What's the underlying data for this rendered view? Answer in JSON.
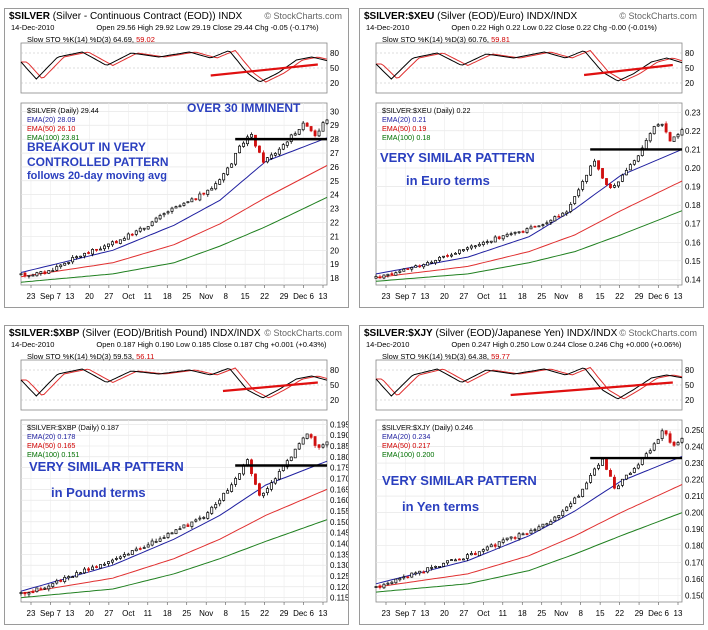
{
  "chart_data": [
    {
      "type": "candlestick",
      "symbol": "$SILVER",
      "title": "(Silver - Continuous Contract (EOD))",
      "exchange": "INDX",
      "brand": "© StockCharts.com",
      "date": "14-Dec-2010",
      "ohlc_text": "Open 29.56  High 29.92  Low 29.19  Close 29.44  Chg -0.05 (-0.17%)",
      "sto_label": "Slow STO %K(14) %D(3) 64.69,",
      "sto_value2": "59.02",
      "sto_axis": [
        "80",
        "50",
        "20"
      ],
      "price_label": "$SILVER (Daily) 29.44",
      "ema_labels": [
        "EMA(20) 28.09",
        "EMA(50) 26.10",
        "EMA(100) 23.81"
      ],
      "yticks": [
        "30",
        "29",
        "28",
        "27",
        "26",
        "25",
        "24",
        "23",
        "22",
        "21",
        "20",
        "19",
        "18"
      ],
      "ymin": 17.5,
      "ymax": 30.6,
      "xticks": [
        "23",
        "Sep 7",
        "13",
        "20",
        "27",
        "Oct",
        "11",
        "18",
        "25",
        "Nov",
        "8",
        "15",
        "22",
        "29",
        "Dec 6",
        "13"
      ],
      "start": 18.2,
      "end": 29.44,
      "resistance": 28.0,
      "price_path": [
        [
          0,
          18.2
        ],
        [
          0.08,
          18.4
        ],
        [
          0.18,
          19.5
        ],
        [
          0.3,
          20.5
        ],
        [
          0.4,
          21.6
        ],
        [
          0.48,
          22.8
        ],
        [
          0.56,
          23.6
        ],
        [
          0.62,
          24.4
        ],
        [
          0.68,
          26.0
        ],
        [
          0.72,
          27.6
        ],
        [
          0.75,
          28.4
        ],
        [
          0.79,
          26.4
        ],
        [
          0.83,
          27.0
        ],
        [
          0.87,
          27.9
        ],
        [
          0.9,
          28.6
        ],
        [
          0.93,
          29.2
        ],
        [
          0.96,
          28.3
        ],
        [
          1.0,
          29.44
        ]
      ],
      "emas": [
        [
          [
            0,
            18.4
          ],
          [
            0.3,
            20.0
          ],
          [
            0.5,
            21.8
          ],
          [
            0.65,
            23.6
          ],
          [
            0.8,
            26.4
          ],
          [
            1.0,
            28.09
          ]
        ],
        [
          [
            0,
            18.1
          ],
          [
            0.3,
            19.1
          ],
          [
            0.5,
            20.4
          ],
          [
            0.65,
            21.9
          ],
          [
            0.8,
            23.8
          ],
          [
            1.0,
            26.1
          ]
        ],
        [
          [
            0,
            17.7
          ],
          [
            0.3,
            18.3
          ],
          [
            0.5,
            19.1
          ],
          [
            0.65,
            20.3
          ],
          [
            0.8,
            21.7
          ],
          [
            1.0,
            23.81
          ]
        ]
      ],
      "sto_k": [
        [
          0,
          62
        ],
        [
          0.05,
          28
        ],
        [
          0.12,
          72
        ],
        [
          0.2,
          82
        ],
        [
          0.28,
          55
        ],
        [
          0.36,
          80
        ],
        [
          0.45,
          72
        ],
        [
          0.55,
          82
        ],
        [
          0.62,
          70
        ],
        [
          0.68,
          85
        ],
        [
          0.74,
          40
        ],
        [
          0.78,
          22
        ],
        [
          0.84,
          40
        ],
        [
          0.9,
          66
        ],
        [
          0.95,
          72
        ],
        [
          1.0,
          64.69
        ]
      ],
      "support_line": [
        [
          0.62,
          35
        ],
        [
          0.97,
          57
        ]
      ],
      "annotations": [
        {
          "id": "a1",
          "text": "OVER 30 IMMINENT"
        },
        {
          "id": "a2",
          "text": "BREAKOUT IN VERY"
        },
        {
          "id": "a3",
          "text": "CONTROLLED PATTERN"
        },
        {
          "id": "a4",
          "text": "follows 20-day moving avg"
        }
      ]
    },
    {
      "type": "candlestick",
      "symbol": "$SILVER:$XEU",
      "title": "(Silver (EOD)/Euro)",
      "exchange": "INDX/INDX",
      "brand": "© StockCharts.com",
      "date": "14-Dec-2010",
      "ohlc_text": "Open 0.22  High 0.22  Low 0.22  Close 0.22  Chg -0.00 (-0.01%)",
      "sto_label": "Slow STO %K(14) %D(3) 60.76,",
      "sto_value2": "59.81",
      "sto_axis": [
        "80",
        "50",
        "20"
      ],
      "price_label": "$SILVER:$XEU (Daily) 0.22",
      "ema_labels": [
        "EMA(20) 0.21",
        "EMA(50) 0.19",
        "EMA(100) 0.18"
      ],
      "yticks": [
        "0.23",
        "0.22",
        "0.21",
        "0.20",
        "0.19",
        "0.18",
        "0.17",
        "0.16",
        "0.15",
        "0.14"
      ],
      "ymin": 0.137,
      "ymax": 0.235,
      "xticks": [
        "23",
        "Sep 7",
        "13",
        "20",
        "27",
        "Oct",
        "11",
        "18",
        "25",
        "Nov",
        "8",
        "15",
        "22",
        "29",
        "Dec 6",
        "13"
      ],
      "start": 0.141,
      "end": 0.22,
      "resistance": 0.21,
      "price_path": [
        [
          0,
          0.141
        ],
        [
          0.1,
          0.145
        ],
        [
          0.22,
          0.152
        ],
        [
          0.35,
          0.16
        ],
        [
          0.45,
          0.165
        ],
        [
          0.55,
          0.17
        ],
        [
          0.62,
          0.176
        ],
        [
          0.67,
          0.19
        ],
        [
          0.71,
          0.205
        ],
        [
          0.74,
          0.195
        ],
        [
          0.77,
          0.188
        ],
        [
          0.82,
          0.2
        ],
        [
          0.86,
          0.208
        ],
        [
          0.9,
          0.22
        ],
        [
          0.93,
          0.225
        ],
        [
          0.96,
          0.215
        ],
        [
          1.0,
          0.22
        ]
      ],
      "emas": [
        [
          [
            0,
            0.143
          ],
          [
            0.3,
            0.152
          ],
          [
            0.5,
            0.163
          ],
          [
            0.65,
            0.178
          ],
          [
            0.8,
            0.196
          ],
          [
            1.0,
            0.21
          ]
        ],
        [
          [
            0,
            0.141
          ],
          [
            0.3,
            0.147
          ],
          [
            0.5,
            0.155
          ],
          [
            0.65,
            0.164
          ],
          [
            0.8,
            0.177
          ],
          [
            1.0,
            0.193
          ]
        ],
        [
          [
            0,
            0.139
          ],
          [
            0.3,
            0.143
          ],
          [
            0.5,
            0.149
          ],
          [
            0.65,
            0.155
          ],
          [
            0.8,
            0.164
          ],
          [
            1.0,
            0.177
          ]
        ]
      ],
      "sto_k": [
        [
          0,
          58
        ],
        [
          0.05,
          28
        ],
        [
          0.12,
          70
        ],
        [
          0.2,
          80
        ],
        [
          0.28,
          55
        ],
        [
          0.36,
          78
        ],
        [
          0.45,
          70
        ],
        [
          0.55,
          82
        ],
        [
          0.62,
          70
        ],
        [
          0.68,
          85
        ],
        [
          0.74,
          42
        ],
        [
          0.79,
          24
        ],
        [
          0.84,
          38
        ],
        [
          0.9,
          62
        ],
        [
          0.95,
          70
        ],
        [
          1.0,
          60.76
        ]
      ],
      "support_line": [
        [
          0.68,
          36
        ],
        [
          0.97,
          56
        ]
      ],
      "annotations": [
        {
          "id": "b1",
          "text": "VERY SIMILAR PATTERN"
        },
        {
          "id": "b2",
          "text": "in Euro terms"
        }
      ]
    },
    {
      "type": "candlestick",
      "symbol": "$SILVER:$XBP",
      "title": "(Silver (EOD)/British Pound)",
      "exchange": "INDX/INDX",
      "brand": "© StockCharts.com",
      "date": "14-Dec-2010",
      "ohlc_text": "Open 0.187  High 0.190  Low 0.185  Close 0.187  Chg +0.001 (+0.43%)",
      "sto_label": "Slow STO %K(14) %D(3) 59.53,",
      "sto_value2": "56.11",
      "sto_axis": [
        "80",
        "50",
        "20"
      ],
      "price_label": "$SILVER:$XBP (Daily) 0.187",
      "ema_labels": [
        "EMA(20) 0.178",
        "EMA(50) 0.165",
        "EMA(100) 0.151"
      ],
      "yticks": [
        "0.195",
        "0.190",
        "0.185",
        "0.180",
        "0.175",
        "0.170",
        "0.165",
        "0.160",
        "0.155",
        "0.150",
        "0.145",
        "0.140",
        "0.135",
        "0.130",
        "0.125",
        "0.120",
        "0.115"
      ],
      "ymin": 0.113,
      "ymax": 0.197,
      "xticks": [
        "23",
        "Sep 7",
        "13",
        "20",
        "27",
        "Oct",
        "11",
        "18",
        "25",
        "Nov",
        "8",
        "15",
        "22",
        "29",
        "Dec 6",
        "13"
      ],
      "start": 0.117,
      "end": 0.187,
      "resistance": 0.176,
      "price_path": [
        [
          0,
          0.117
        ],
        [
          0.08,
          0.12
        ],
        [
          0.2,
          0.127
        ],
        [
          0.32,
          0.134
        ],
        [
          0.42,
          0.14
        ],
        [
          0.52,
          0.147
        ],
        [
          0.6,
          0.152
        ],
        [
          0.66,
          0.162
        ],
        [
          0.71,
          0.172
        ],
        [
          0.74,
          0.178
        ],
        [
          0.78,
          0.162
        ],
        [
          0.83,
          0.17
        ],
        [
          0.87,
          0.178
        ],
        [
          0.91,
          0.186
        ],
        [
          0.94,
          0.192
        ],
        [
          0.97,
          0.183
        ],
        [
          1.0,
          0.187
        ]
      ],
      "emas": [
        [
          [
            0,
            0.118
          ],
          [
            0.3,
            0.13
          ],
          [
            0.5,
            0.142
          ],
          [
            0.65,
            0.153
          ],
          [
            0.8,
            0.167
          ],
          [
            1.0,
            0.178
          ]
        ],
        [
          [
            0,
            0.117
          ],
          [
            0.3,
            0.124
          ],
          [
            0.5,
            0.133
          ],
          [
            0.65,
            0.142
          ],
          [
            0.8,
            0.153
          ],
          [
            1.0,
            0.165
          ]
        ],
        [
          [
            0,
            0.115
          ],
          [
            0.3,
            0.119
          ],
          [
            0.5,
            0.126
          ],
          [
            0.65,
            0.133
          ],
          [
            0.8,
            0.141
          ],
          [
            1.0,
            0.151
          ]
        ]
      ],
      "sto_k": [
        [
          0,
          60
        ],
        [
          0.05,
          28
        ],
        [
          0.12,
          72
        ],
        [
          0.2,
          82
        ],
        [
          0.28,
          55
        ],
        [
          0.36,
          78
        ],
        [
          0.45,
          72
        ],
        [
          0.55,
          80
        ],
        [
          0.62,
          70
        ],
        [
          0.68,
          84
        ],
        [
          0.74,
          40
        ],
        [
          0.79,
          24
        ],
        [
          0.84,
          40
        ],
        [
          0.9,
          62
        ],
        [
          0.95,
          68
        ],
        [
          1.0,
          59.53
        ]
      ],
      "support_line": [
        [
          0.66,
          38
        ],
        [
          0.97,
          55
        ]
      ],
      "annotations": [
        {
          "id": "c1",
          "text": "VERY SIMILAR PATTERN"
        },
        {
          "id": "c2",
          "text": "in Pound terms"
        }
      ]
    },
    {
      "type": "candlestick",
      "symbol": "$SILVER:$XJY",
      "title": "(Silver (EOD)/Japanese Yen)",
      "exchange": "INDX/INDX",
      "brand": "© StockCharts.com",
      "date": "14-Dec-2010",
      "ohlc_text": "Open 0.247  High 0.250  Low 0.244  Close 0.246  Chg +0.000 (+0.06%)",
      "sto_label": "Slow STO %K(14) %D(3) 64.38,",
      "sto_value2": "59.77",
      "sto_axis": [
        "80",
        "50",
        "20"
      ],
      "price_label": "$SILVER:$XJY (Daily) 0.246",
      "ema_labels": [
        "EMA(20) 0.234",
        "EMA(50) 0.217",
        "EMA(100) 0.200"
      ],
      "yticks": [
        "0.250",
        "0.240",
        "0.230",
        "0.220",
        "0.210",
        "0.200",
        "0.190",
        "0.180",
        "0.170",
        "0.160",
        "0.150"
      ],
      "ymin": 0.146,
      "ymax": 0.256,
      "xticks": [
        "23",
        "Sep 7",
        "13",
        "20",
        "27",
        "Oct",
        "11",
        "18",
        "25",
        "Nov",
        "8",
        "15",
        "22",
        "29",
        "Dec 6",
        "13"
      ],
      "start": 0.155,
      "end": 0.246,
      "resistance": 0.233,
      "price_path": [
        [
          0,
          0.155
        ],
        [
          0.08,
          0.16
        ],
        [
          0.2,
          0.168
        ],
        [
          0.32,
          0.175
        ],
        [
          0.42,
          0.183
        ],
        [
          0.52,
          0.19
        ],
        [
          0.6,
          0.198
        ],
        [
          0.66,
          0.21
        ],
        [
          0.71,
          0.225
        ],
        [
          0.74,
          0.232
        ],
        [
          0.78,
          0.215
        ],
        [
          0.83,
          0.224
        ],
        [
          0.87,
          0.232
        ],
        [
          0.91,
          0.242
        ],
        [
          0.94,
          0.25
        ],
        [
          0.97,
          0.24
        ],
        [
          1.0,
          0.246
        ]
      ],
      "emas": [
        [
          [
            0,
            0.157
          ],
          [
            0.3,
            0.171
          ],
          [
            0.5,
            0.186
          ],
          [
            0.65,
            0.201
          ],
          [
            0.8,
            0.219
          ],
          [
            1.0,
            0.234
          ]
        ],
        [
          [
            0,
            0.155
          ],
          [
            0.3,
            0.163
          ],
          [
            0.5,
            0.174
          ],
          [
            0.65,
            0.186
          ],
          [
            0.8,
            0.2
          ],
          [
            1.0,
            0.217
          ]
        ],
        [
          [
            0,
            0.152
          ],
          [
            0.3,
            0.157
          ],
          [
            0.5,
            0.165
          ],
          [
            0.65,
            0.175
          ],
          [
            0.8,
            0.186
          ],
          [
            1.0,
            0.2
          ]
        ]
      ],
      "sto_k": [
        [
          0,
          62
        ],
        [
          0.05,
          28
        ],
        [
          0.12,
          70
        ],
        [
          0.2,
          82
        ],
        [
          0.28,
          55
        ],
        [
          0.36,
          80
        ],
        [
          0.45,
          72
        ],
        [
          0.55,
          82
        ],
        [
          0.62,
          70
        ],
        [
          0.68,
          85
        ],
        [
          0.74,
          40
        ],
        [
          0.79,
          22
        ],
        [
          0.84,
          40
        ],
        [
          0.9,
          64
        ],
        [
          0.95,
          70
        ],
        [
          1.0,
          64.38
        ]
      ],
      "support_line": [
        [
          0.44,
          30
        ],
        [
          0.97,
          55
        ]
      ],
      "annotations": [
        {
          "id": "d1",
          "text": "VERY SIMILAR PATTERN"
        },
        {
          "id": "d2",
          "text": "in Yen terms"
        }
      ]
    }
  ]
}
